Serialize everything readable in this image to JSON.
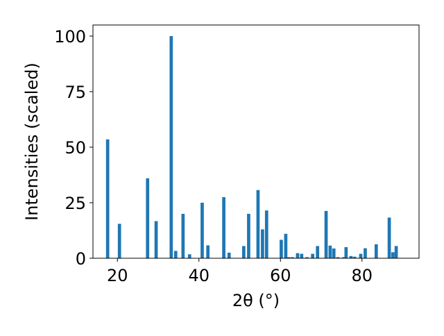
{
  "chart_data": {
    "type": "bar",
    "title": "",
    "xlabel": "2θ (°)",
    "ylabel": "Intensities (scaled)",
    "xlim": [
      14,
      94
    ],
    "ylim": [
      0,
      105
    ],
    "x_ticks": [
      20,
      40,
      60,
      80
    ],
    "y_ticks": [
      0,
      25,
      50,
      75,
      100
    ],
    "grid": false,
    "legend": "none",
    "bar_color": "#1f77b4",
    "bar_width": 0.8,
    "series": [
      {
        "x": [
          17.6,
          20.5,
          27.4,
          29.5,
          33.2,
          34.3,
          36.1,
          37.7,
          40.8,
          42.2,
          46.1,
          47.4,
          51.0,
          52.2,
          54.5,
          55.6,
          56.6,
          60.2,
          61.3,
          62.0,
          62.9,
          64.2,
          65.2,
          66.5,
          67.9,
          69.1,
          71.2,
          72.2,
          73.1,
          74.1,
          75.5,
          76.1,
          77.3,
          78.2,
          79.7,
          80.8,
          83.5,
          86.7,
          87.6,
          88.4
        ],
        "values": [
          53.5,
          15.5,
          36.0,
          16.7,
          100.0,
          3.3,
          20.0,
          1.8,
          25.0,
          5.8,
          27.5,
          2.5,
          5.5,
          20.0,
          30.7,
          13.0,
          21.5,
          8.3,
          11.0,
          0.5,
          0.5,
          2.3,
          2.0,
          0.5,
          2.0,
          5.5,
          21.3,
          5.7,
          4.4,
          0.5,
          0.5,
          5.0,
          1.0,
          0.7,
          2.0,
          4.5,
          6.3,
          18.3,
          2.7,
          5.5
        ]
      }
    ]
  }
}
